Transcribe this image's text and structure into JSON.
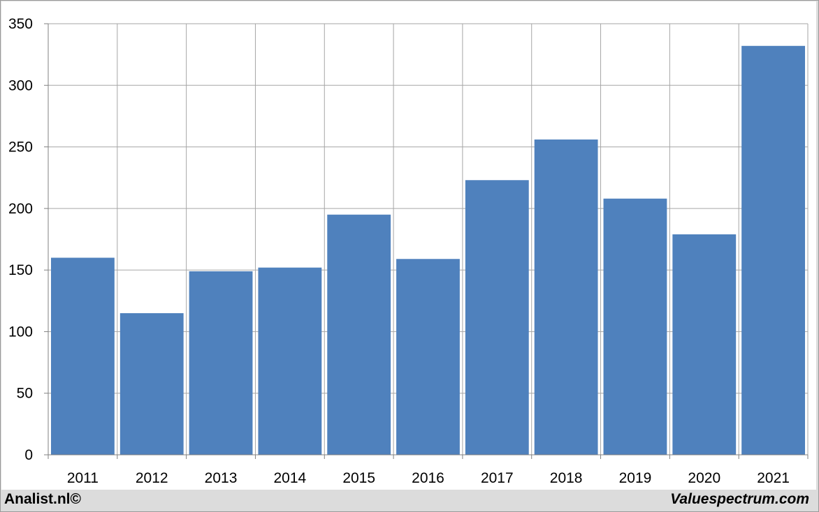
{
  "chart_data": {
    "type": "bar",
    "categories": [
      "2011",
      "2012",
      "2013",
      "2014",
      "2015",
      "2016",
      "2017",
      "2018",
      "2019",
      "2020",
      "2021"
    ],
    "values": [
      160,
      115,
      149,
      152,
      195,
      159,
      223,
      256,
      208,
      179,
      332
    ],
    "title": "",
    "xlabel": "",
    "ylabel": "",
    "ylim": [
      0,
      350
    ],
    "yticks": [
      0,
      50,
      100,
      150,
      200,
      250,
      300,
      350
    ],
    "grid": true,
    "bar_color": "#4f81bd"
  },
  "footer": {
    "left": "Analist.nl©",
    "right": "Valuespectrum.com"
  }
}
